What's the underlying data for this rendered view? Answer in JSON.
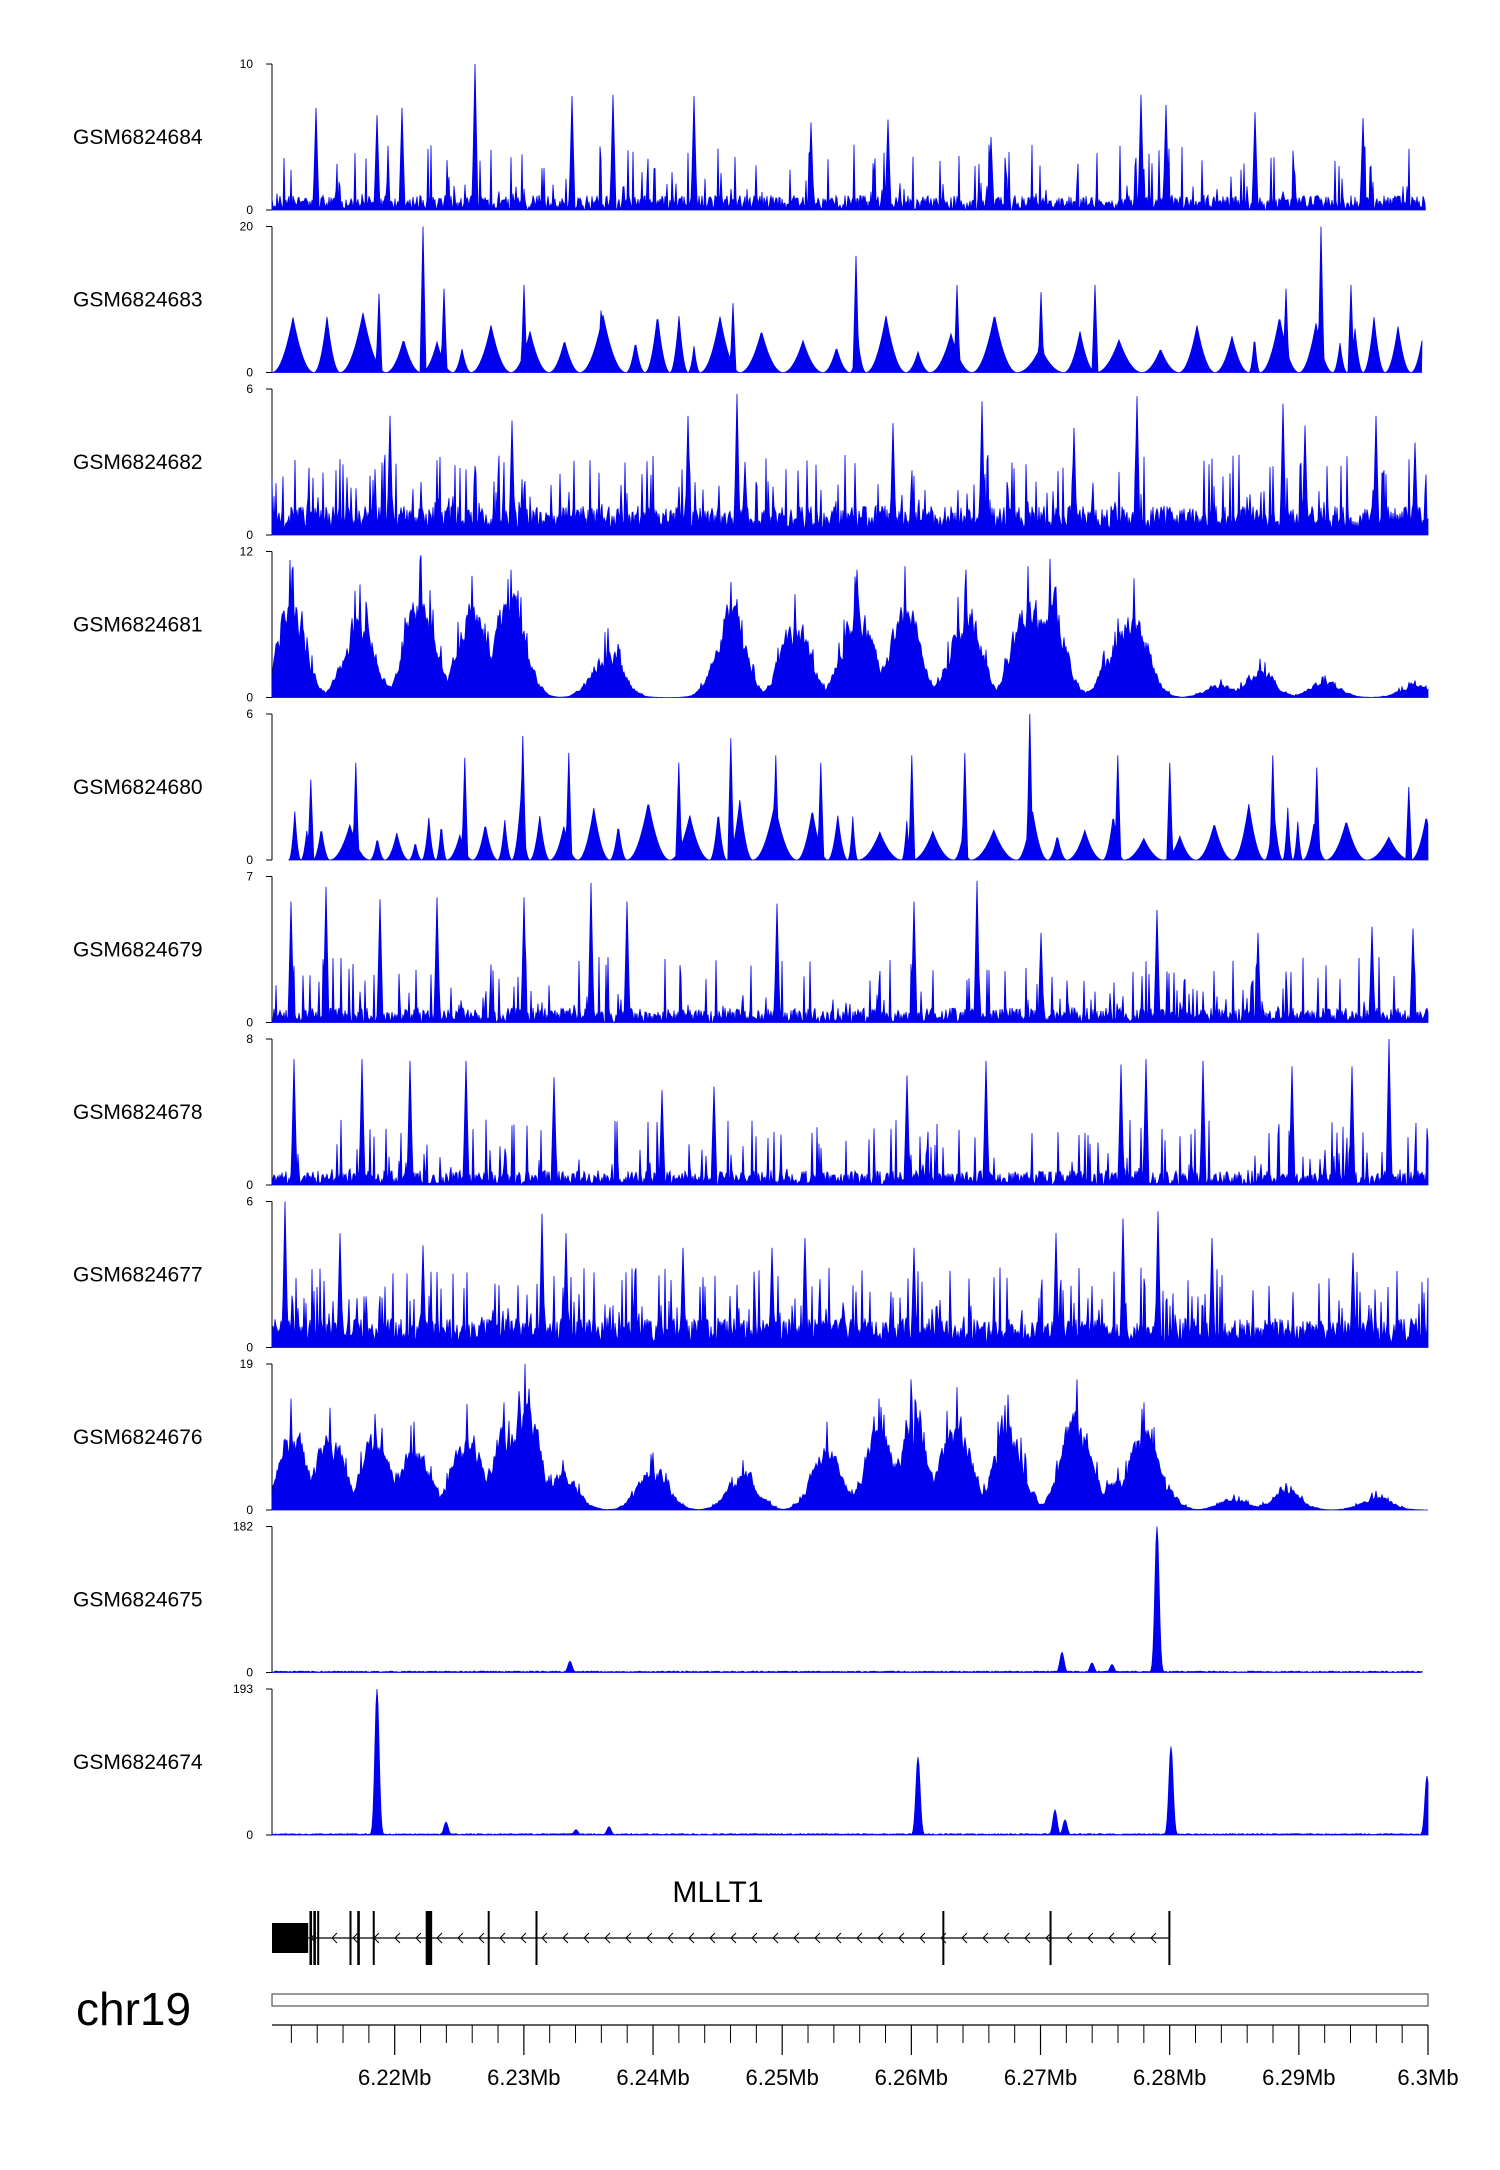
{
  "chart_data": {
    "type": "area",
    "title": "",
    "chromosome": "chr19",
    "xlim": [
      6.2105,
      6.3
    ],
    "x_unit": "Mb",
    "x_ticks": [
      6.22,
      6.23,
      6.24,
      6.25,
      6.26,
      6.27,
      6.28,
      6.29,
      6.3
    ],
    "x_tick_labels": [
      "6.22Mb",
      "6.23Mb",
      "6.24Mb",
      "6.25Mb",
      "6.26Mb",
      "6.27Mb",
      "6.28Mb",
      "6.29Mb",
      "6.3Mb"
    ],
    "minor_tick_step": 0.002,
    "series_color": "#0000ee",
    "series": [
      {
        "name": "GSM6824684",
        "ymin": 0,
        "ymax": 10,
        "ymin_label": "0",
        "ymax_label": "10",
        "pattern": "sparse",
        "data_range": [
          6.2105,
          6.2998
        ],
        "peaks": [
          [
            6.2139,
            7.0
          ],
          [
            6.2186,
            6.5
          ],
          [
            6.2206,
            7.0
          ],
          [
            6.2262,
            10.0
          ],
          [
            6.2337,
            7.8
          ],
          [
            6.2369,
            7.9
          ],
          [
            6.2432,
            7.8
          ],
          [
            6.2522,
            6.0
          ],
          [
            6.2582,
            6.2
          ],
          [
            6.2662,
            5.0
          ],
          [
            6.2778,
            7.9
          ],
          [
            6.2797,
            7.2
          ],
          [
            6.2866,
            6.7
          ],
          [
            6.295,
            6.3
          ]
        ]
      },
      {
        "name": "GSM6824683",
        "ymin": 0,
        "ymax": 20,
        "ymin_label": "0",
        "ymax_label": "20",
        "pattern": "triangles",
        "data_range": [
          6.2105,
          6.2995
        ],
        "peaks": [
          [
            6.2188,
            10.8
          ],
          [
            6.2222,
            20.0
          ],
          [
            6.2238,
            11.5
          ],
          [
            6.23,
            12.0
          ],
          [
            6.236,
            8.5
          ],
          [
            6.2462,
            9.5
          ],
          [
            6.2557,
            16.0
          ],
          [
            6.2635,
            12.0
          ],
          [
            6.27,
            11.0
          ],
          [
            6.2742,
            12.0
          ],
          [
            6.289,
            11.5
          ],
          [
            6.2917,
            20.0
          ],
          [
            6.294,
            12.0
          ]
        ]
      },
      {
        "name": "GSM6824682",
        "ymin": 0,
        "ymax": 6,
        "ymin_label": "0",
        "ymax_label": "6",
        "pattern": "dense",
        "data_range": [
          6.2105,
          6.3
        ],
        "peaks": [
          [
            6.2196,
            4.9
          ],
          [
            6.2291,
            4.7
          ],
          [
            6.2427,
            4.9
          ],
          [
            6.2465,
            5.8
          ],
          [
            6.2471,
            3.0
          ],
          [
            6.2586,
            4.6
          ],
          [
            6.2655,
            5.5
          ],
          [
            6.2726,
            4.4
          ],
          [
            6.2775,
            5.7
          ],
          [
            6.2888,
            5.4
          ],
          [
            6.2905,
            4.5
          ],
          [
            6.296,
            4.9
          ],
          [
            6.299,
            3.8
          ]
        ]
      },
      {
        "name": "GSM6824681",
        "ymin": 0,
        "ymax": 12,
        "ymin_label": "0",
        "ymax_label": "12",
        "pattern": "broad",
        "data_range": [
          6.2105,
          6.3
        ],
        "peaks": [
          [
            6.2119,
            11.3
          ],
          [
            6.2173,
            9.3
          ],
          [
            6.222,
            11.7
          ],
          [
            6.226,
            10.0
          ],
          [
            6.229,
            10.5
          ],
          [
            6.2365,
            5.7
          ],
          [
            6.246,
            9.5
          ],
          [
            6.251,
            8.5
          ],
          [
            6.2558,
            10.5
          ],
          [
            6.2595,
            10.8
          ],
          [
            6.2642,
            10.5
          ],
          [
            6.269,
            10.8
          ],
          [
            6.2707,
            11.4
          ],
          [
            6.276,
            6.5
          ],
          [
            6.2772,
            9.8
          ],
          [
            6.284,
            1.5
          ],
          [
            6.287,
            3.2
          ],
          [
            6.292,
            1.8
          ],
          [
            6.299,
            1.4
          ]
        ]
      },
      {
        "name": "GSM6824680",
        "ymin": 0,
        "ymax": 6,
        "ymin_label": "0",
        "ymax_label": "6",
        "pattern": "triangles",
        "data_range": [
          6.2118,
          6.3
        ],
        "peaks": [
          [
            6.2135,
            3.3
          ],
          [
            6.217,
            4.0
          ],
          [
            6.2254,
            4.2
          ],
          [
            6.2299,
            5.1
          ],
          [
            6.2335,
            4.4
          ],
          [
            6.242,
            4.0
          ],
          [
            6.246,
            5.0
          ],
          [
            6.2495,
            4.3
          ],
          [
            6.253,
            4.0
          ],
          [
            6.26,
            4.3
          ],
          [
            6.2641,
            4.4
          ],
          [
            6.2692,
            6.0
          ],
          [
            6.276,
            4.3
          ],
          [
            6.28,
            4.0
          ],
          [
            6.288,
            4.3
          ],
          [
            6.2914,
            3.8
          ],
          [
            6.2985,
            3.0
          ]
        ]
      },
      {
        "name": "GSM6824679",
        "ymin": 0,
        "ymax": 7,
        "ymin_label": "0",
        "ymax_label": "7",
        "pattern": "sparse",
        "data_range": [
          6.2105,
          6.3
        ],
        "peaks": [
          [
            6.212,
            5.8
          ],
          [
            6.2147,
            6.5
          ],
          [
            6.2189,
            5.9
          ],
          [
            6.2233,
            6.0
          ],
          [
            6.23,
            6.0
          ],
          [
            6.2352,
            6.7
          ],
          [
            6.238,
            5.8
          ],
          [
            6.2496,
            5.7
          ],
          [
            6.2602,
            5.8
          ],
          [
            6.2651,
            6.8
          ],
          [
            6.27,
            4.3
          ],
          [
            6.279,
            5.4
          ],
          [
            6.2868,
            4.3
          ],
          [
            6.2957,
            4.6
          ],
          [
            6.2988,
            4.5
          ]
        ]
      },
      {
        "name": "GSM6824678",
        "ymin": 0,
        "ymax": 8,
        "ymin_label": "0",
        "ymax_label": "8",
        "pattern": "sparse",
        "data_range": [
          6.2105,
          6.3
        ],
        "peaks": [
          [
            6.2122,
            6.9
          ],
          [
            6.2175,
            6.9
          ],
          [
            6.2212,
            6.8
          ],
          [
            6.2255,
            6.8
          ],
          [
            6.2323,
            5.9
          ],
          [
            6.2407,
            5.2
          ],
          [
            6.2447,
            5.4
          ],
          [
            6.2597,
            6.0
          ],
          [
            6.2658,
            6.8
          ],
          [
            6.2762,
            6.6
          ],
          [
            6.2782,
            6.9
          ],
          [
            6.2826,
            6.8
          ],
          [
            6.2895,
            6.5
          ],
          [
            6.2941,
            6.5
          ],
          [
            6.297,
            8.0
          ]
        ]
      },
      {
        "name": "GSM6824677",
        "ymin": 0,
        "ymax": 6,
        "ymin_label": "0",
        "ymax_label": "6",
        "pattern": "dense",
        "data_range": [
          6.2105,
          6.3
        ],
        "peaks": [
          [
            6.2115,
            6.0
          ],
          [
            6.2158,
            4.7
          ],
          [
            6.2222,
            4.2
          ],
          [
            6.2314,
            5.5
          ],
          [
            6.2333,
            4.7
          ],
          [
            6.2423,
            4.1
          ],
          [
            6.2492,
            4.1
          ],
          [
            6.2518,
            4.5
          ],
          [
            6.2602,
            4.1
          ],
          [
            6.2712,
            4.7
          ],
          [
            6.2764,
            5.3
          ],
          [
            6.2791,
            5.6
          ],
          [
            6.2833,
            4.5
          ],
          [
            6.2942,
            3.9
          ]
        ]
      },
      {
        "name": "GSM6824676",
        "ymin": 0,
        "ymax": 19,
        "ymin_label": "0",
        "ymax_label": "19",
        "pattern": "broad",
        "data_range": [
          6.2105,
          6.3
        ],
        "peaks": [
          [
            6.212,
            14.5
          ],
          [
            6.215,
            13.3
          ],
          [
            6.2185,
            12.5
          ],
          [
            6.2215,
            11.5
          ],
          [
            6.2256,
            13.8
          ],
          [
            6.2285,
            14.0
          ],
          [
            6.2301,
            19.0
          ],
          [
            6.233,
            6.5
          ],
          [
            6.24,
            7.5
          ],
          [
            6.247,
            6.5
          ],
          [
            6.2535,
            11.5
          ],
          [
            6.2575,
            14.5
          ],
          [
            6.26,
            17.0
          ],
          [
            6.2635,
            16.0
          ],
          [
            6.2675,
            15.0
          ],
          [
            6.2728,
            17.0
          ],
          [
            6.276,
            5.5
          ],
          [
            6.278,
            14.0
          ],
          [
            6.279,
            5.5
          ],
          [
            6.285,
            2.0
          ],
          [
            6.289,
            3.5
          ],
          [
            6.296,
            2.5
          ]
        ]
      },
      {
        "name": "GSM6824675",
        "ymin": 0,
        "ymax": 182,
        "ymin_label": "0",
        "ymax_label": "182",
        "pattern": "peaks",
        "data_range": [
          6.2105,
          6.2995
        ],
        "peaks": [
          [
            6.2336,
            14
          ],
          [
            6.2717,
            25
          ],
          [
            6.274,
            12
          ],
          [
            6.2755,
            10
          ],
          [
            6.279,
            182
          ]
        ]
      },
      {
        "name": "GSM6824674",
        "ymin": 0,
        "ymax": 193,
        "ymin_label": "0",
        "ymax_label": "193",
        "pattern": "peaks",
        "data_range": [
          6.2105,
          6.3
        ],
        "peaks": [
          [
            6.2186,
            193
          ],
          [
            6.224,
            17
          ],
          [
            6.234,
            7
          ],
          [
            6.2366,
            11
          ],
          [
            6.2605,
            103
          ],
          [
            6.2711,
            33
          ],
          [
            6.2719,
            20
          ],
          [
            6.2801,
            117
          ],
          [
            6.2999,
            78
          ]
        ]
      }
    ],
    "genes": [
      {
        "name": "MLLT1",
        "strand": "-",
        "start": 6.2105,
        "end": 6.28,
        "exons": [
          [
            6.2105,
            6.2133
          ],
          [
            6.2134,
            6.2136
          ],
          [
            6.2137,
            6.2139
          ],
          [
            6.214,
            6.2141
          ],
          [
            6.2165,
            6.2166
          ],
          [
            6.2171,
            6.2173
          ],
          [
            6.2183,
            6.2184
          ],
          [
            6.2224,
            6.2229
          ],
          [
            6.2272,
            6.2273
          ],
          [
            6.2309,
            6.231
          ],
          [
            6.2624,
            6.2625
          ],
          [
            6.2707,
            6.2708
          ],
          [
            6.2799,
            6.28
          ]
        ]
      }
    ]
  }
}
